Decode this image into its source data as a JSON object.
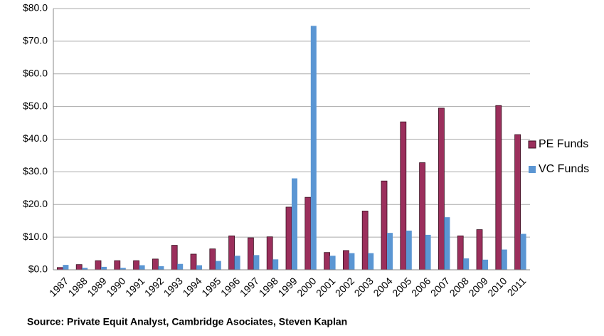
{
  "chart_data": {
    "type": "bar",
    "categories": [
      "1987",
      "1988",
      "1989",
      "1990",
      "1991",
      "1992",
      "1993",
      "1994",
      "1995",
      "1996",
      "1997",
      "1998",
      "1999",
      "2000",
      "2001",
      "2002",
      "2003",
      "2004",
      "2005",
      "2006",
      "2007",
      "2008",
      "2009",
      "2010",
      "2011"
    ],
    "series": [
      {
        "name": "PE Funds",
        "color": "#9b2f5c",
        "values": [
          0.7,
          1.6,
          2.8,
          2.8,
          2.8,
          3.3,
          7.5,
          4.8,
          6.4,
          10.4,
          9.8,
          10.1,
          19.2,
          22.2,
          5.3,
          5.9,
          18.0,
          27.2,
          45.3,
          32.8,
          49.5,
          10.4,
          12.3,
          50.3,
          41.4
        ]
      },
      {
        "name": "VC Funds",
        "color": "#5b96d3",
        "values": [
          1.5,
          0.6,
          0.9,
          0.6,
          1.4,
          1.1,
          1.8,
          1.4,
          2.7,
          4.3,
          4.5,
          3.2,
          28.0,
          74.7,
          4.3,
          5.1,
          5.1,
          11.3,
          12.0,
          10.7,
          16.1,
          3.5,
          3.1,
          6.2,
          11.0
        ]
      }
    ],
    "ylim": [
      0,
      80
    ],
    "yticks": [
      {
        "value": 0,
        "label": "$0.0"
      },
      {
        "value": 10,
        "label": "$10.0"
      },
      {
        "value": 20,
        "label": "$20.0"
      },
      {
        "value": 30,
        "label": "$30.0"
      },
      {
        "value": 40,
        "label": "$40.0"
      },
      {
        "value": 50,
        "label": "$50.0"
      },
      {
        "value": 60,
        "label": "$60.0"
      },
      {
        "value": 70,
        "label": "$70.0"
      },
      {
        "value": 80,
        "label": "$80.0"
      }
    ],
    "grid": true,
    "legend": "right",
    "source": "Source:  Private Equit Analyst, Cambridge Asociates, Steven Kaplan"
  }
}
